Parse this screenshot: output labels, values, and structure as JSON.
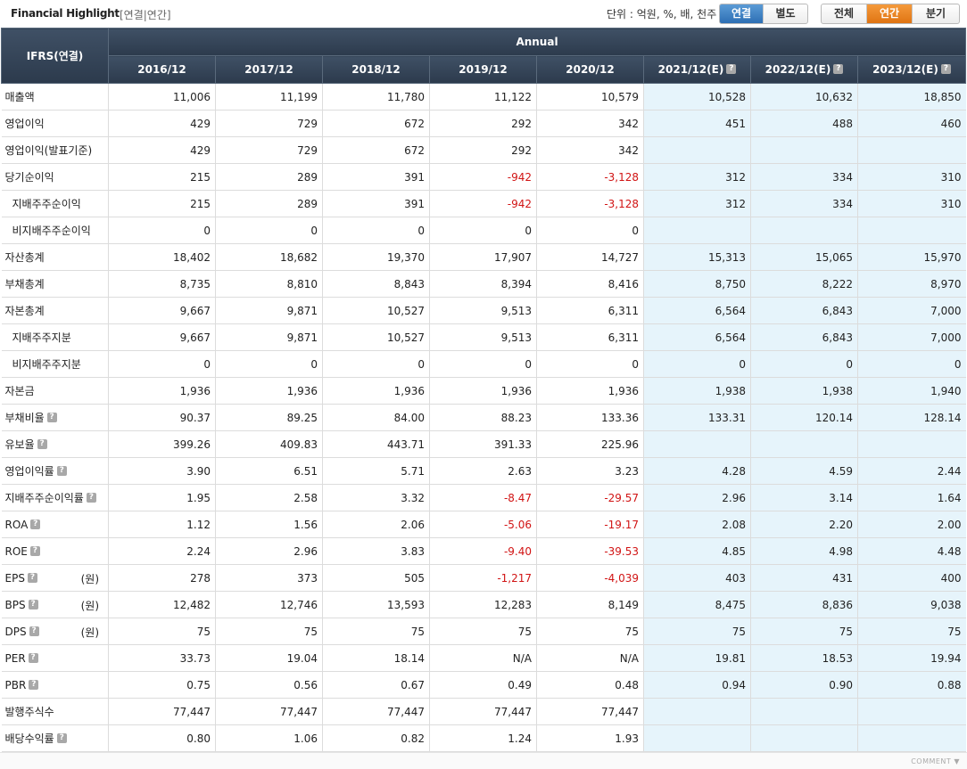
{
  "header": {
    "title": "Financial Highlight",
    "subtitle": "[연결|연간]",
    "unit_text": "단위 : 억원, %, 배, 천주",
    "consol_buttons": [
      {
        "label": "연결",
        "active": true
      },
      {
        "label": "별도",
        "active": false
      }
    ],
    "period_buttons": [
      {
        "label": "전체",
        "active": false
      },
      {
        "label": "연간",
        "active": true
      },
      {
        "label": "분기",
        "active": false
      }
    ]
  },
  "table": {
    "corner_label": "IFRS(연결)",
    "group_label": "Annual",
    "columns": [
      "2016/12",
      "2017/12",
      "2018/12",
      "2019/12",
      "2020/12",
      "2021/12(E)",
      "2022/12(E)",
      "2023/12(E)"
    ],
    "estimate_from_index": 5,
    "rows": [
      {
        "label": "매출액",
        "values": [
          "11,006",
          "11,199",
          "11,780",
          "11,122",
          "10,579",
          "10,528",
          "10,632",
          "18,850"
        ]
      },
      {
        "label": "영업이익",
        "values": [
          "429",
          "729",
          "672",
          "292",
          "342",
          "451",
          "488",
          "460"
        ]
      },
      {
        "label": "영업이익(발표기준)",
        "values": [
          "429",
          "729",
          "672",
          "292",
          "342",
          "",
          "",
          ""
        ]
      },
      {
        "label": "당기순이익",
        "values": [
          "215",
          "289",
          "391",
          "-942",
          "-3,128",
          "312",
          "334",
          "310"
        ]
      },
      {
        "label": "지배주주순이익",
        "sub": true,
        "values": [
          "215",
          "289",
          "391",
          "-942",
          "-3,128",
          "312",
          "334",
          "310"
        ]
      },
      {
        "label": "비지배주주순이익",
        "sub": true,
        "values": [
          "0",
          "0",
          "0",
          "0",
          "0",
          "",
          "",
          ""
        ]
      },
      {
        "label": "자산총계",
        "values": [
          "18,402",
          "18,682",
          "19,370",
          "17,907",
          "14,727",
          "15,313",
          "15,065",
          "15,970"
        ]
      },
      {
        "label": "부채총계",
        "values": [
          "8,735",
          "8,810",
          "8,843",
          "8,394",
          "8,416",
          "8,750",
          "8,222",
          "8,970"
        ]
      },
      {
        "label": "자본총계",
        "values": [
          "9,667",
          "9,871",
          "10,527",
          "9,513",
          "6,311",
          "6,564",
          "6,843",
          "7,000"
        ]
      },
      {
        "label": "지배주주지분",
        "sub": true,
        "values": [
          "9,667",
          "9,871",
          "10,527",
          "9,513",
          "6,311",
          "6,564",
          "6,843",
          "7,000"
        ]
      },
      {
        "label": "비지배주주지분",
        "sub": true,
        "values": [
          "0",
          "0",
          "0",
          "0",
          "0",
          "0",
          "0",
          "0"
        ]
      },
      {
        "label": "자본금",
        "values": [
          "1,936",
          "1,936",
          "1,936",
          "1,936",
          "1,936",
          "1,938",
          "1,938",
          "1,940"
        ]
      },
      {
        "label": "부채비율",
        "help": true,
        "values": [
          "90.37",
          "89.25",
          "84.00",
          "88.23",
          "133.36",
          "133.31",
          "120.14",
          "128.14"
        ]
      },
      {
        "label": "유보율",
        "help": true,
        "values": [
          "399.26",
          "409.83",
          "443.71",
          "391.33",
          "225.96",
          "",
          "",
          ""
        ]
      },
      {
        "label": "영업이익률",
        "help": true,
        "values": [
          "3.90",
          "6.51",
          "5.71",
          "2.63",
          "3.23",
          "4.28",
          "4.59",
          "2.44"
        ]
      },
      {
        "label": "지배주주순이익률",
        "help": true,
        "values": [
          "1.95",
          "2.58",
          "3.32",
          "-8.47",
          "-29.57",
          "2.96",
          "3.14",
          "1.64"
        ]
      },
      {
        "label": "ROA",
        "help": true,
        "values": [
          "1.12",
          "1.56",
          "2.06",
          "-5.06",
          "-19.17",
          "2.08",
          "2.20",
          "2.00"
        ]
      },
      {
        "label": "ROE",
        "help": true,
        "values": [
          "2.24",
          "2.96",
          "3.83",
          "-9.40",
          "-39.53",
          "4.85",
          "4.98",
          "4.48"
        ]
      },
      {
        "label": "EPS",
        "help": true,
        "unit": "(원)",
        "values": [
          "278",
          "373",
          "505",
          "-1,217",
          "-4,039",
          "403",
          "431",
          "400"
        ]
      },
      {
        "label": "BPS",
        "help": true,
        "unit": "(원)",
        "values": [
          "12,482",
          "12,746",
          "13,593",
          "12,283",
          "8,149",
          "8,475",
          "8,836",
          "9,038"
        ]
      },
      {
        "label": "DPS",
        "help": true,
        "unit": "(원)",
        "values": [
          "75",
          "75",
          "75",
          "75",
          "75",
          "75",
          "75",
          "75"
        ]
      },
      {
        "label": "PER",
        "help": true,
        "values": [
          "33.73",
          "19.04",
          "18.14",
          "N/A",
          "N/A",
          "19.81",
          "18.53",
          "19.94"
        ]
      },
      {
        "label": "PBR",
        "help": true,
        "values": [
          "0.75",
          "0.56",
          "0.67",
          "0.49",
          "0.48",
          "0.94",
          "0.90",
          "0.88"
        ]
      },
      {
        "label": "발행주식수",
        "values": [
          "77,447",
          "77,447",
          "77,447",
          "77,447",
          "77,447",
          "",
          "",
          ""
        ]
      },
      {
        "label": "배당수익률",
        "help": true,
        "values": [
          "0.80",
          "1.06",
          "0.82",
          "1.24",
          "1.93",
          "",
          "",
          ""
        ]
      }
    ]
  },
  "help_glyph": "?",
  "footer": {
    "comment_label": "COMMENT ▼"
  },
  "colors": {
    "header_bg": "#34445a",
    "estimate_bg": "#e6f4fb",
    "negative": "#d11414",
    "active_blue": "#2d6fb4",
    "active_orange": "#e07412"
  }
}
